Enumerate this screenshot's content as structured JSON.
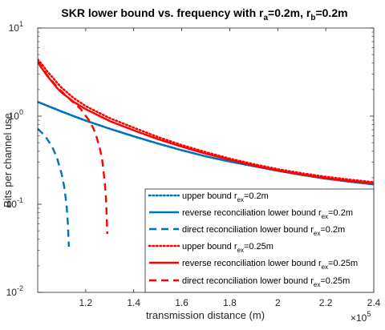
{
  "chart_data": {
    "type": "line",
    "title": "SKR lower bound vs. frequency with r",
    "title_parts": {
      "sub_a": "a",
      "mid": "=0.2m, r",
      "sub_b": "b",
      "end": "=0.2m"
    },
    "xlabel": "transmission distance (m)",
    "ylabel": "Bits per channel use",
    "x_exponent_label": "×10",
    "x_exponent_power": "5",
    "xlim": [
      100000,
      240000
    ],
    "ylim": [
      0.01,
      10
    ],
    "yscale": "log",
    "grid": false,
    "legend_position": "bottom-right",
    "x_ticks": [
      {
        "value": 120000,
        "label": "1.2"
      },
      {
        "value": 140000,
        "label": "1.4"
      },
      {
        "value": 160000,
        "label": "1.6"
      },
      {
        "value": 180000,
        "label": "1.8"
      },
      {
        "value": 200000,
        "label": "2"
      },
      {
        "value": 220000,
        "label": "2.2"
      },
      {
        "value": 240000,
        "label": "2.4"
      }
    ],
    "y_ticks": [
      {
        "value": 0.01,
        "base": "10",
        "exp": "-2"
      },
      {
        "value": 0.1,
        "base": "10",
        "exp": "-1"
      },
      {
        "value": 1,
        "base": "10",
        "exp": "0"
      },
      {
        "value": 10,
        "base": "10",
        "exp": "1"
      }
    ],
    "series": [
      {
        "name": "upper bound r_ex=0.2m",
        "legend": {
          "pre": "upper bound r",
          "sub": "ex",
          "post": "=0.2m"
        },
        "color": "#0072BD",
        "style": "dotted",
        "x": [
          100000,
          105000,
          110000,
          115000,
          120000,
          130000,
          140000,
          150000,
          160000,
          170000,
          180000,
          190000,
          200000,
          210000,
          220000,
          230000,
          240000
        ],
        "y": [
          1.45,
          1.28,
          1.13,
          1.0,
          0.89,
          0.72,
          0.59,
          0.49,
          0.41,
          0.35,
          0.305,
          0.27,
          0.24,
          0.215,
          0.195,
          0.18,
          0.168
        ]
      },
      {
        "name": "reverse reconciliation lower bound r_ex=0.2m",
        "legend": {
          "pre": "reverse reconciliation lower bound r",
          "sub": "ex",
          "post": "=0.2m"
        },
        "color": "#0072BD",
        "style": "solid",
        "x": [
          100000,
          105000,
          110000,
          115000,
          120000,
          130000,
          140000,
          150000,
          160000,
          170000,
          180000,
          190000,
          200000,
          210000,
          220000,
          230000,
          240000
        ],
        "y": [
          1.45,
          1.28,
          1.13,
          1.0,
          0.89,
          0.72,
          0.59,
          0.49,
          0.41,
          0.35,
          0.305,
          0.27,
          0.24,
          0.215,
          0.195,
          0.18,
          0.168
        ]
      },
      {
        "name": "direct reconciliation lower bound r_ex=0.2m",
        "legend": {
          "pre": "direct reconciliation lower bound r",
          "sub": "ex",
          "post": "=0.2m"
        },
        "color": "#0072BD",
        "style": "dashed",
        "x": [
          100000,
          103000,
          106000,
          108000,
          110000,
          111000,
          112000,
          112500,
          113000
        ],
        "y": [
          0.72,
          0.6,
          0.45,
          0.34,
          0.22,
          0.16,
          0.1,
          0.065,
          0.033
        ]
      },
      {
        "name": "upper bound r_ex=0.25m",
        "legend": {
          "pre": "upper bound r",
          "sub": "ex",
          "post": "=0.25m"
        },
        "color": "#FF0000",
        "style": "dotted",
        "x": [
          100000,
          102000,
          104000,
          106000,
          108000,
          110000,
          115000,
          120000,
          130000,
          140000,
          150000,
          160000,
          170000,
          180000,
          190000,
          200000,
          210000,
          220000,
          230000,
          240000
        ],
        "y": [
          4.4,
          3.8,
          3.2,
          2.8,
          2.4,
          2.1,
          1.6,
          1.3,
          0.95,
          0.74,
          0.58,
          0.47,
          0.39,
          0.33,
          0.285,
          0.25,
          0.225,
          0.205,
          0.19,
          0.178
        ]
      },
      {
        "name": "reverse reconciliation lower bound r_ex=0.25m",
        "legend": {
          "pre": "reverse reconciliation lower bound r",
          "sub": "ex",
          "post": "=0.25m"
        },
        "color": "#FF0000",
        "style": "solid",
        "x": [
          100000,
          102000,
          104000,
          106000,
          108000,
          110000,
          115000,
          120000,
          130000,
          140000,
          150000,
          160000,
          170000,
          180000,
          190000,
          200000,
          210000,
          220000,
          230000,
          240000
        ],
        "y": [
          4.1,
          3.4,
          2.85,
          2.45,
          2.1,
          1.85,
          1.45,
          1.2,
          0.88,
          0.69,
          0.55,
          0.45,
          0.375,
          0.32,
          0.275,
          0.242,
          0.218,
          0.198,
          0.184,
          0.172
        ]
      },
      {
        "name": "direct reconciliation lower bound r_ex=0.25m",
        "legend": {
          "pre": "direct reconciliation lower bound r",
          "sub": "ex",
          "post": "=0.25m"
        },
        "color": "#FF0000",
        "style": "dashed",
        "x": [
          100000,
          102000,
          104000,
          106000,
          108000,
          110000,
          114000,
          118000,
          122000,
          124000,
          126000,
          127000,
          128000,
          128500,
          129000
        ],
        "y": [
          4.2,
          3.5,
          2.9,
          2.5,
          2.15,
          1.9,
          1.5,
          1.2,
          0.85,
          0.65,
          0.42,
          0.3,
          0.17,
          0.11,
          0.046
        ]
      }
    ]
  }
}
